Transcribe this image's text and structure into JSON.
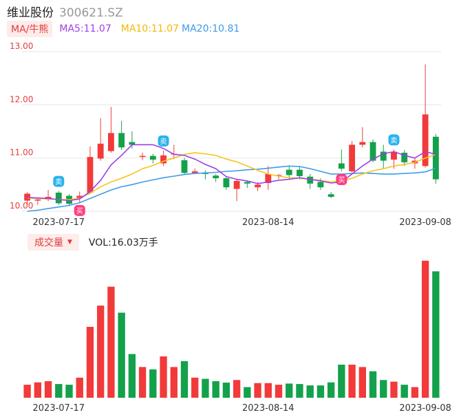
{
  "header": {
    "name": "维业股份",
    "code": "300621.SZ"
  },
  "ma": {
    "button_label": "MA/牛熊",
    "ma5": "MA5:11.07",
    "ma10": "MA10:11.07",
    "ma20": "MA20:10.81"
  },
  "volume": {
    "button_label": "成交量",
    "value_text": "VOL:16.03万手"
  },
  "colors": {
    "up": "#f23a3a",
    "down": "#13a14b",
    "ma5": "#9d3fe7",
    "ma10": "#f5c518",
    "ma20": "#3d9be9",
    "grid": "#e6e6e6"
  },
  "markers": [
    {
      "index": 5,
      "type": "buy",
      "label": "买"
    },
    {
      "index": 3,
      "type": "sell",
      "label": "卖"
    },
    {
      "index": 13,
      "type": "sell",
      "label": "卖"
    },
    {
      "index": 30,
      "type": "buy",
      "label": "买"
    },
    {
      "index": 35,
      "type": "sell",
      "label": "卖"
    }
  ],
  "chart_data": {
    "type": "candlestick",
    "y_ticks": [
      "13.00",
      "12.00",
      "11.00",
      "10.00"
    ],
    "ylim": [
      10.0,
      13.0
    ],
    "x_tick_labels": [
      {
        "index": 3,
        "label": "2023-07-17"
      },
      {
        "index": 23,
        "label": "2023-08-14"
      },
      {
        "index": 38,
        "label": "2023-09-08"
      }
    ],
    "candles": [
      [
        10.2,
        10.33,
        10.36,
        10.1,
        0.055
      ],
      [
        10.2,
        10.22,
        10.26,
        10.12,
        0.065
      ],
      [
        10.22,
        10.27,
        10.4,
        10.19,
        0.07
      ],
      [
        10.35,
        10.15,
        10.38,
        10.12,
        0.058
      ],
      [
        10.29,
        10.14,
        10.32,
        10.1,
        0.055
      ],
      [
        10.25,
        10.29,
        10.37,
        10.17,
        0.085
      ],
      [
        10.35,
        11.02,
        11.22,
        10.32,
        0.3
      ],
      [
        10.99,
        11.27,
        11.75,
        10.95,
        0.39
      ],
      [
        11.13,
        11.47,
        11.96,
        11.1,
        0.47
      ],
      [
        11.47,
        11.2,
        11.7,
        11.15,
        0.36
      ],
      [
        11.3,
        11.25,
        11.5,
        11.18,
        0.185
      ],
      [
        11.02,
        11.04,
        11.1,
        10.96,
        0.13
      ],
      [
        11.04,
        10.97,
        11.08,
        10.9,
        0.12
      ],
      [
        10.9,
        11.05,
        11.14,
        10.85,
        0.175
      ],
      [
        11.08,
        11.08,
        11.25,
        10.98,
        0.13
      ],
      [
        10.96,
        10.72,
        11.0,
        10.68,
        0.155
      ],
      [
        10.72,
        10.75,
        10.8,
        10.7,
        0.085
      ],
      [
        10.72,
        10.7,
        10.77,
        10.6,
        0.08
      ],
      [
        10.67,
        10.62,
        10.7,
        10.55,
        0.07
      ],
      [
        10.62,
        10.45,
        10.66,
        10.4,
        0.064
      ],
      [
        10.42,
        10.57,
        10.59,
        10.19,
        0.075
      ],
      [
        10.55,
        10.52,
        10.57,
        10.44,
        0.045
      ],
      [
        10.45,
        10.5,
        10.55,
        10.38,
        0.062
      ],
      [
        10.53,
        10.7,
        10.85,
        10.4,
        0.062
      ],
      [
        10.68,
        10.68,
        10.7,
        10.6,
        0.055
      ],
      [
        10.78,
        10.68,
        10.84,
        10.6,
        0.06
      ],
      [
        10.78,
        10.66,
        10.85,
        10.6,
        0.058
      ],
      [
        10.65,
        10.52,
        10.7,
        10.42,
        0.052
      ],
      [
        10.55,
        10.45,
        10.62,
        10.4,
        0.052
      ],
      [
        10.32,
        10.27,
        10.36,
        10.25,
        0.065
      ],
      [
        10.9,
        10.8,
        11.16,
        10.75,
        0.14
      ],
      [
        10.75,
        11.25,
        11.32,
        10.73,
        0.14
      ],
      [
        11.25,
        11.3,
        11.58,
        11.2,
        0.13
      ],
      [
        11.3,
        10.95,
        11.35,
        10.92,
        0.112
      ],
      [
        11.12,
        10.95,
        11.25,
        10.8,
        0.075
      ],
      [
        10.97,
        11.12,
        11.16,
        10.8,
        0.068
      ],
      [
        11.1,
        10.92,
        11.15,
        10.85,
        0.055
      ],
      [
        10.9,
        10.95,
        11.0,
        10.8,
        0.045
      ],
      [
        10.85,
        11.82,
        12.76,
        10.82,
        0.58
      ],
      [
        11.4,
        10.6,
        11.45,
        10.52,
        0.535
      ]
    ],
    "ma5": [
      10.26,
      10.25,
      10.24,
      10.22,
      10.2,
      10.23,
      10.37,
      10.58,
      10.87,
      11.05,
      11.25,
      11.25,
      11.25,
      11.18,
      11.07,
      11.05,
      10.98,
      10.88,
      10.8,
      10.65,
      10.6,
      10.57,
      10.52,
      10.55,
      10.58,
      10.6,
      10.63,
      10.6,
      10.57,
      10.53,
      10.55,
      10.7,
      10.85,
      10.98,
      11.08,
      11.12,
      11.05,
      11.0,
      11.12,
      11.07
    ],
    "ma10": [
      10.25,
      10.24,
      10.23,
      10.22,
      10.22,
      10.24,
      10.34,
      10.46,
      10.55,
      10.62,
      10.7,
      10.8,
      10.86,
      10.94,
      11.0,
      11.07,
      11.1,
      11.08,
      11.05,
      10.98,
      10.93,
      10.85,
      10.77,
      10.7,
      10.66,
      10.63,
      10.62,
      10.6,
      10.58,
      10.55,
      10.57,
      10.62,
      10.7,
      10.76,
      10.8,
      10.85,
      10.88,
      10.92,
      11.0,
      11.07
    ],
    "ma20": [
      10.0,
      10.02,
      10.05,
      10.08,
      10.11,
      10.16,
      10.24,
      10.32,
      10.4,
      10.46,
      10.5,
      10.55,
      10.59,
      10.63,
      10.66,
      10.69,
      10.71,
      10.72,
      10.73,
      10.75,
      10.76,
      10.78,
      10.79,
      10.81,
      10.83,
      10.85,
      10.84,
      10.8,
      10.75,
      10.7,
      10.7,
      10.71,
      10.72,
      10.71,
      10.7,
      10.7,
      10.71,
      10.72,
      10.74,
      10.81
    ],
    "volume_axis_max": 0.6
  }
}
